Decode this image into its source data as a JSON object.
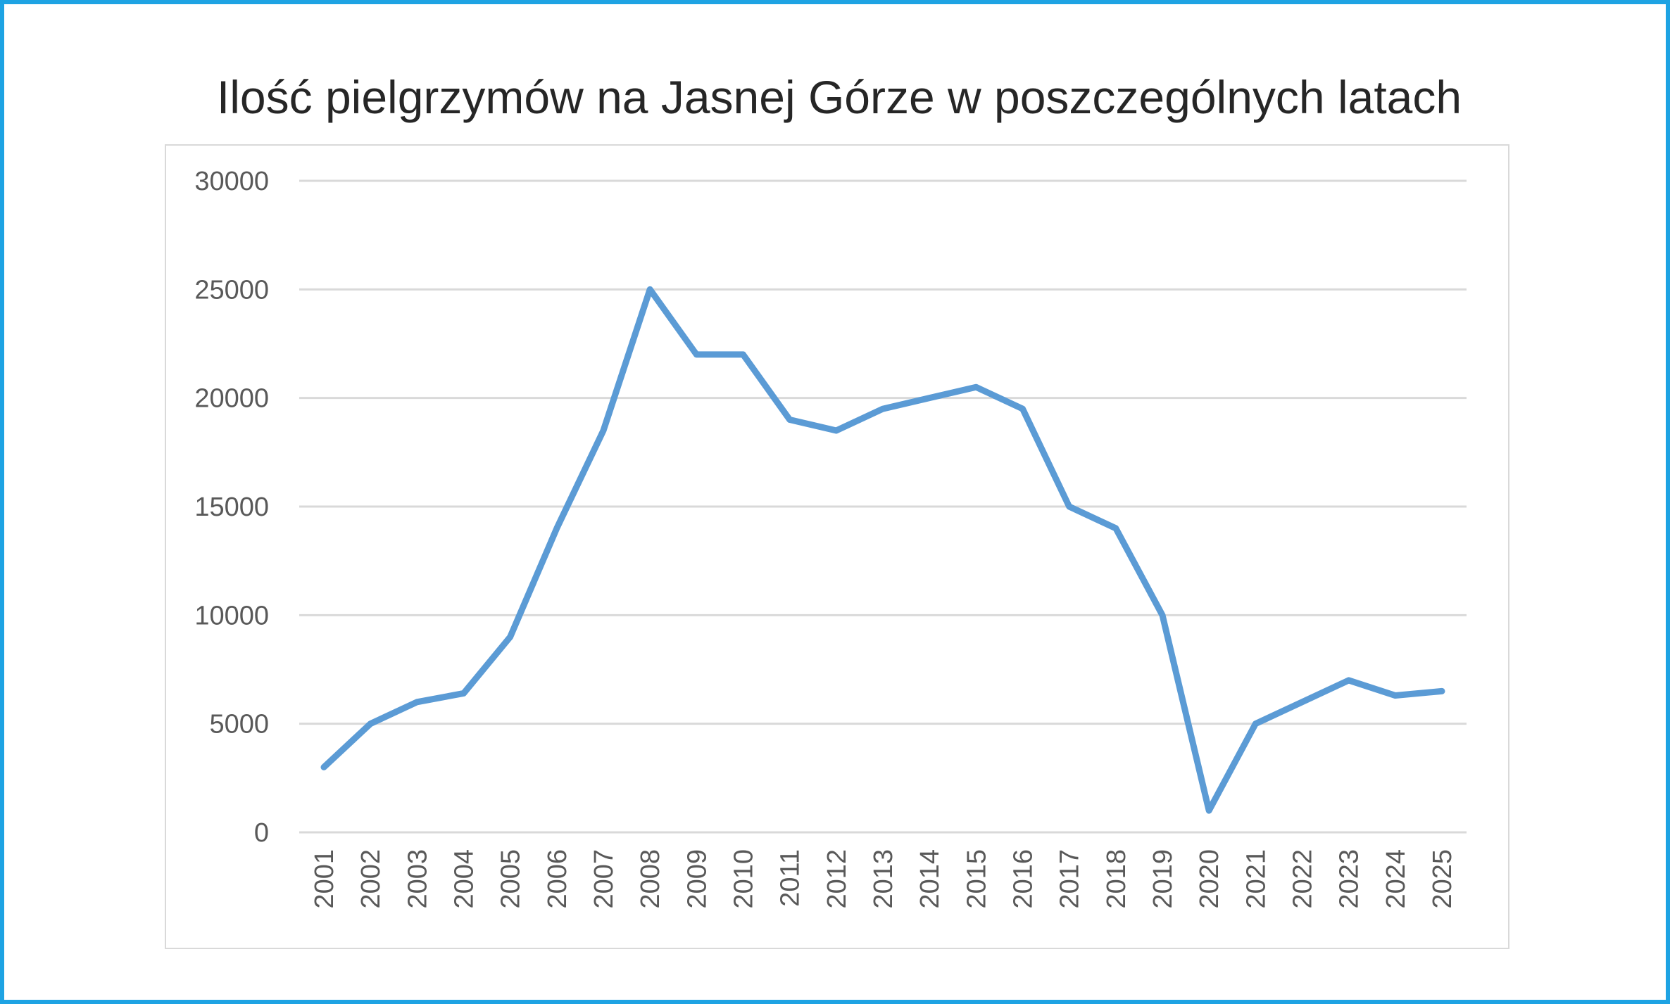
{
  "chart_data": {
    "type": "line",
    "title": "Ilość pielgrzymów na Jasnej Górze w poszczególnych latach",
    "xlabel": "",
    "ylabel": "",
    "categories": [
      "2001",
      "2002",
      "2003",
      "2004",
      "2005",
      "2006",
      "2007",
      "2008",
      "2009",
      "2010",
      "2011",
      "2012",
      "2013",
      "2014",
      "2015",
      "2016",
      "2017",
      "2018",
      "2019",
      "2020",
      "2021",
      "2022",
      "2023",
      "2024",
      "2025"
    ],
    "series": [
      {
        "values": [
          3000,
          5000,
          6000,
          6400,
          9000,
          14000,
          18500,
          25000,
          22000,
          22000,
          19000,
          18500,
          19500,
          20000,
          20500,
          19500,
          15000,
          14000,
          10000,
          1000,
          5000,
          6000,
          7000,
          6300,
          6500
        ],
        "color": "#5b9bd5"
      }
    ],
    "ylim": [
      0,
      30000
    ],
    "yticks": [
      "0",
      "5000",
      "10000",
      "15000",
      "20000",
      "25000",
      "30000"
    ],
    "grid": true,
    "legend": "none",
    "gridline_color": "#d9d9d9",
    "frame_color": "#1ea3e3"
  }
}
